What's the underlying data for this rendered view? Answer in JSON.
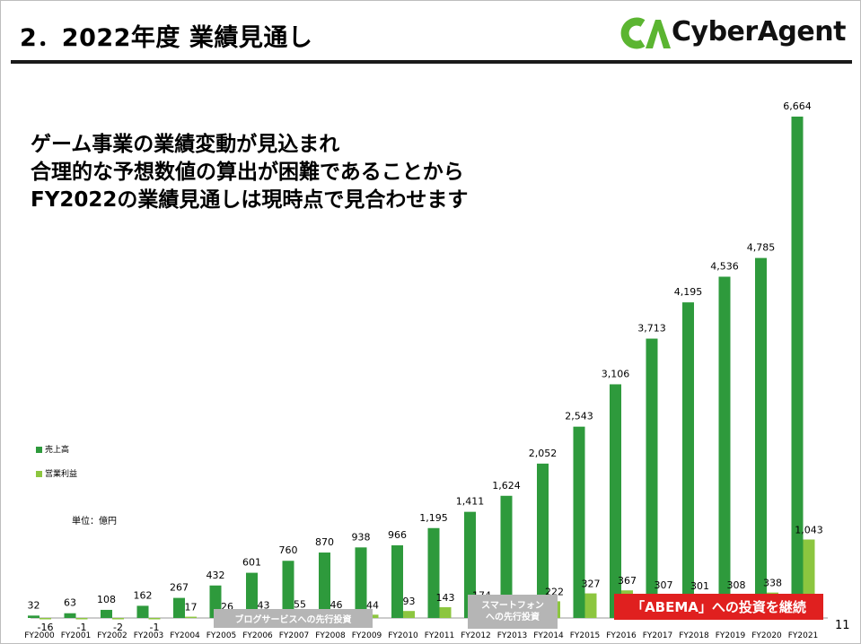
{
  "page": {
    "title": "2．2022年度 業績見通し",
    "logo_text": "CyberAgent",
    "page_number": "11"
  },
  "headline": {
    "line1": "ゲーム事業の業績変動が見込まれ",
    "line2": "合理的な予想数値の算出が困難であることから",
    "line3": "FY2022の業績見通しは現時点で見合わせます"
  },
  "legend": {
    "revenue": "売上高",
    "operating_profit": "営業利益"
  },
  "unit_label": "単位：億円",
  "annotations": {
    "blog": "ブログサービスへの先行投資",
    "smartphone_line1": "スマートフォン",
    "smartphone_line2": "への先行投資",
    "abema": "「ABEMA」への投資を継続"
  },
  "colors": {
    "revenue": "#2e9a3c",
    "operating_profit": "#8cc63f",
    "abema_banner": "#e0201f",
    "investment_banner": "#b5b5b5",
    "logo_green": "#5bb531"
  },
  "chart_data": {
    "type": "bar",
    "categories": [
      "FY2000",
      "FY2001",
      "FY2002",
      "FY2003",
      "FY2004",
      "FY2005",
      "FY2006",
      "FY2007",
      "FY2008",
      "FY2009",
      "FY2010",
      "FY2011",
      "FY2012",
      "FY2013",
      "FY2014",
      "FY2015",
      "FY2016",
      "FY2017",
      "FY2018",
      "FY2019",
      "FY2020",
      "FY2021"
    ],
    "series": [
      {
        "name": "売上高",
        "values": [
          32,
          63,
          108,
          162,
          267,
          432,
          601,
          760,
          870,
          938,
          966,
          1195,
          1411,
          1624,
          2052,
          2543,
          3106,
          3713,
          4195,
          4536,
          4785,
          6664
        ],
        "labels": [
          "32",
          "63",
          "108",
          "162",
          "267",
          "432",
          "601",
          "760",
          "870",
          "938",
          "966",
          "1,195",
          "1,411",
          "1,624",
          "2,052",
          "2,543",
          "3,106",
          "3,713",
          "4,195",
          "4,536",
          "4,785",
          "6,664"
        ]
      },
      {
        "name": "営業利益",
        "values": [
          -16,
          -1,
          -2,
          -1,
          17,
          26,
          43,
          55,
          46,
          44,
          93,
          143,
          174,
          103,
          222,
          327,
          367,
          307,
          301,
          308,
          338,
          1043
        ],
        "labels": [
          "-16",
          "-1",
          "-2",
          "-1",
          "17",
          "26",
          "43",
          "55",
          "46",
          "44",
          "93",
          "143",
          "174",
          "103",
          "222",
          "327",
          "367",
          "307",
          "301",
          "308",
          "338",
          "1,043"
        ]
      }
    ],
    "ylim": [
      0,
      6664
    ],
    "grid": false,
    "legend_position": "left-middle"
  }
}
